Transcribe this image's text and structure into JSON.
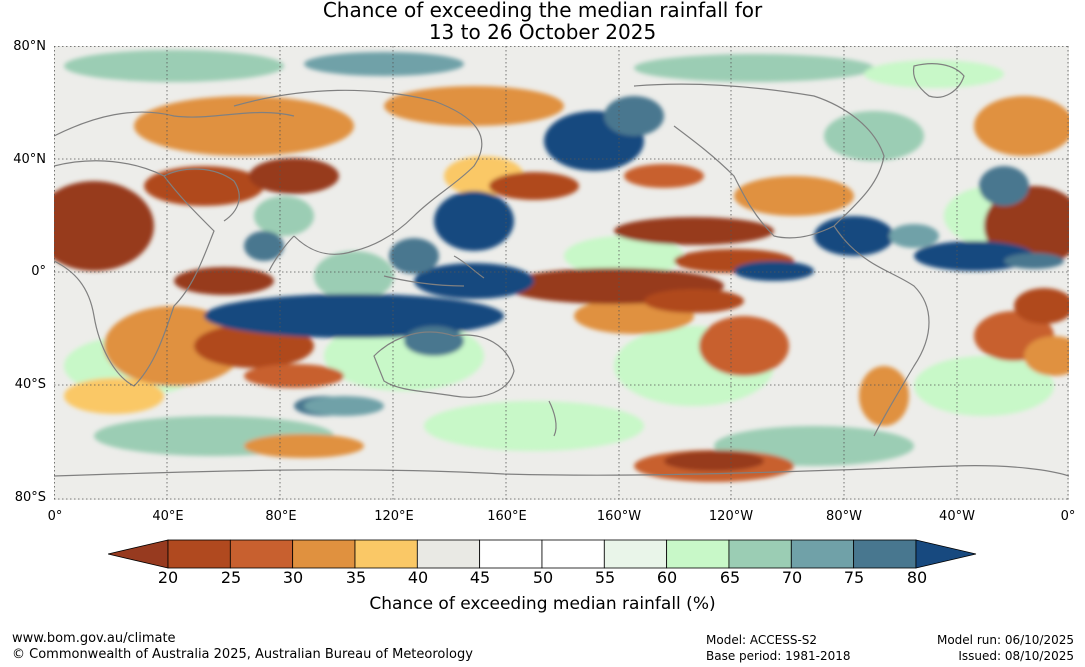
{
  "title": {
    "line1": "Chance of exceeding the median rainfall for",
    "line2": "13 to 26 October 2025"
  },
  "map": {
    "lat_labels": [
      "80°N",
      "40°N",
      "0°",
      "40°S",
      "80°S"
    ],
    "lon_labels": [
      "0°",
      "40°E",
      "80°E",
      "120°E",
      "160°E",
      "160°W",
      "120°W",
      "80°W",
      "40°W",
      "0°"
    ],
    "colors": {
      "ocean_neutral": "#ededea",
      "coast": "#808080",
      "dry_strong": "#973a1f",
      "wet_strong": "#17497f"
    }
  },
  "colorbar": {
    "ticks": [
      "20",
      "25",
      "30",
      "35",
      "40",
      "45",
      "50",
      "55",
      "60",
      "65",
      "70",
      "75",
      "80"
    ],
    "colors": [
      "#973a1f",
      "#b0491f",
      "#c8602f",
      "#e0913f",
      "#fac866",
      "#e9e9e4",
      "#ffffff",
      "#ffffff",
      "#e9f5e9",
      "#c8f8c8",
      "#9bcdb4",
      "#70a1a8",
      "#48778f",
      "#17497f"
    ],
    "label": "Chance of exceeding median rainfall (%)"
  },
  "footer": {
    "url": "www.bom.gov.au/climate",
    "copyright": "© Commonwealth of Australia 2025, Australian Bureau of Meteorology",
    "model": "Model: ACCESS-S2",
    "base_period": "Base period: 1981-2018",
    "model_run": "Model run: 06/10/2025",
    "issued": "Issued: 08/10/2025"
  }
}
